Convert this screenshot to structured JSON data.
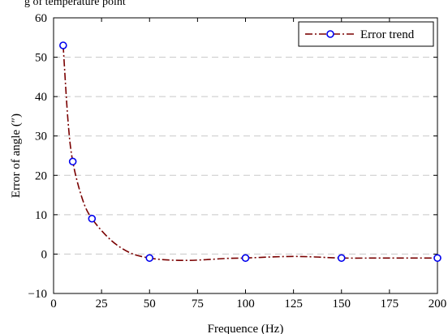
{
  "caption": "g of temperature point",
  "chart_data": {
    "type": "line",
    "xlabel": "Frequence (Hz)",
    "ylabel": "Error of angle (″)",
    "xlim": [
      0,
      200
    ],
    "ylim": [
      -10,
      60
    ],
    "xticks": [
      0,
      25,
      50,
      75,
      100,
      125,
      150,
      175,
      200
    ],
    "yticks": [
      -10,
      0,
      10,
      20,
      30,
      40,
      50,
      60
    ],
    "ytick_labels": [
      "−10",
      "0",
      "10",
      "20",
      "30",
      "40",
      "50",
      "60"
    ],
    "grid": "horizontal dashed",
    "legend": {
      "placement": "top-right",
      "entries": [
        "Error trend"
      ]
    },
    "series": [
      {
        "name": "Error trend",
        "color": "#7a0000",
        "marker_color": "#0000ee",
        "line_style": "dash-dot",
        "x": [
          5,
          10,
          20,
          50,
          100,
          150,
          200
        ],
        "y": [
          53,
          23.5,
          9,
          -1,
          -1,
          -1,
          -1
        ],
        "curve_x": [
          5,
          7.5,
          10,
          15,
          20,
          30,
          40,
          50,
          60,
          70,
          80,
          90,
          100,
          115,
          125,
          135,
          150,
          175,
          200
        ],
        "curve_y": [
          53,
          34,
          23.5,
          14,
          9,
          3.5,
          0.3,
          -1,
          -1.5,
          -1.6,
          -1.4,
          -1.1,
          -1,
          -0.7,
          -0.6,
          -0.7,
          -1,
          -1,
          -1
        ]
      }
    ]
  }
}
